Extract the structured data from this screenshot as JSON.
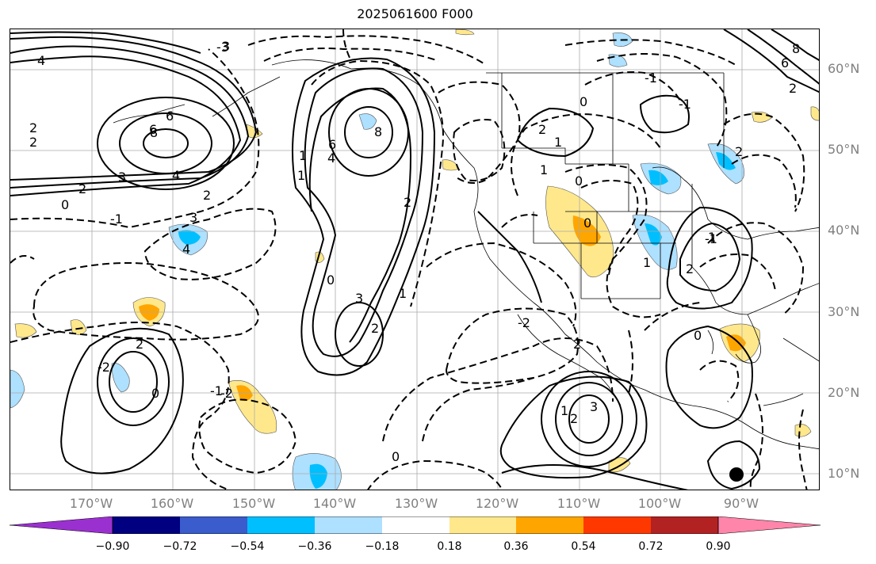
{
  "title": "2025061600 F000",
  "lat_labels": [
    "60°N",
    "50°N",
    "40°N",
    "30°N",
    "20°N",
    "10°N"
  ],
  "lon_labels": [
    "170°W",
    "160°W",
    "150°W",
    "140°W",
    "130°W",
    "120°W",
    "110°W",
    "100°W",
    "90°W"
  ],
  "colorbar": {
    "colors": [
      "#9b30d0",
      "#000080",
      "#3a5ccc",
      "#00bfff",
      "#aee0ff",
      "#ffffff",
      "#ffe88c",
      "#ffa500",
      "#ff3800",
      "#b22222",
      "#ff85aa"
    ],
    "tick_labels": [
      "−0.90",
      "−0.72",
      "−0.54",
      "−0.36",
      "−0.18",
      "0.18",
      "0.36",
      "0.54",
      "0.72",
      "0.90"
    ]
  },
  "contour_labels": [
    "3",
    "4",
    "6",
    "2",
    "2",
    "6",
    "8",
    "3",
    "4",
    "2",
    "0",
    "2",
    "-1",
    "3",
    "4",
    "8",
    "6",
    "4",
    "1",
    "1",
    "2",
    "3",
    "0",
    "2",
    "1",
    "0",
    "2",
    "1",
    "1",
    "0",
    "-1",
    "-1",
    "0",
    "-1",
    "2",
    "2",
    "1",
    "0",
    "-2",
    "2",
    "1",
    "2",
    "3",
    "0",
    "2",
    "-2",
    "-1",
    "-2",
    "0",
    "-3",
    "6",
    "8",
    "2",
    "1"
  ]
}
